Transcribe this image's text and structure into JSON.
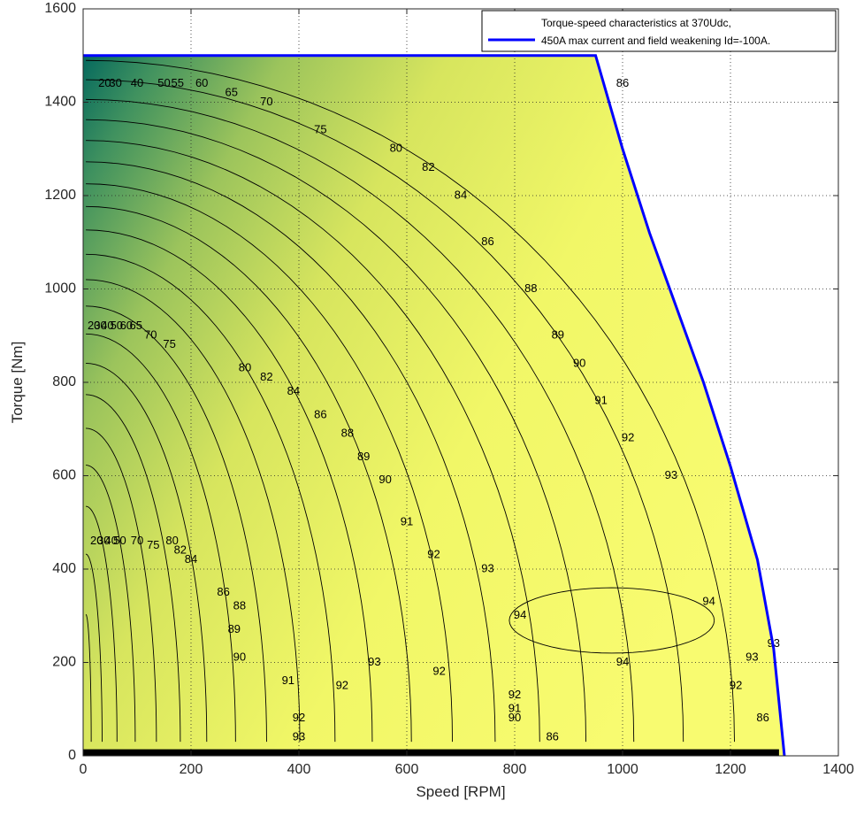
{
  "chart_data": {
    "type": "contour",
    "xlabel": "Speed [RPM]",
    "ylabel": "Torque [Nm]",
    "xlim": [
      0,
      1400
    ],
    "ylim": [
      0,
      1600
    ],
    "xticks": [
      0,
      200,
      400,
      600,
      800,
      1000,
      1200,
      1400
    ],
    "yticks": [
      0,
      200,
      400,
      600,
      800,
      1000,
      1200,
      1400,
      1600
    ],
    "grid": true,
    "legend": {
      "placement": "top-right",
      "entries": [
        {
          "line1": "Torque-speed characteristics at 370Udc,",
          "line2": "450A max current and field weakening Id=-100A.",
          "color": "#0000ff"
        }
      ]
    },
    "envelope": {
      "name": "Torque-speed characteristics at 370Udc, 450A max current and field weakening Id=-100A.",
      "color": "#0000ff",
      "x": [
        0,
        950,
        1000,
        1050,
        1100,
        1150,
        1200,
        1250,
        1280,
        1300
      ],
      "y": [
        1500,
        1500,
        1300,
        1120,
        960,
        800,
        620,
        420,
        230,
        0
      ]
    },
    "contour_levels": [
      20,
      30,
      40,
      50,
      55,
      60,
      65,
      70,
      75,
      80,
      82,
      84,
      86,
      88,
      89,
      90,
      91,
      92,
      93,
      94
    ],
    "efficiency_labels": [
      {
        "text": "20",
        "x": 40,
        "y": 1440
      },
      {
        "text": "30",
        "x": 60,
        "y": 1440
      },
      {
        "text": "40",
        "x": 100,
        "y": 1440
      },
      {
        "text": "50",
        "x": 150,
        "y": 1440
      },
      {
        "text": "55",
        "x": 175,
        "y": 1440
      },
      {
        "text": "60",
        "x": 220,
        "y": 1440
      },
      {
        "text": "65",
        "x": 275,
        "y": 1420
      },
      {
        "text": "70",
        "x": 340,
        "y": 1400
      },
      {
        "text": "75",
        "x": 440,
        "y": 1340
      },
      {
        "text": "80",
        "x": 580,
        "y": 1300
      },
      {
        "text": "82",
        "x": 640,
        "y": 1260
      },
      {
        "text": "84",
        "x": 700,
        "y": 1200
      },
      {
        "text": "86",
        "x": 750,
        "y": 1100
      },
      {
        "text": "86",
        "x": 1000,
        "y": 1440
      },
      {
        "text": "88",
        "x": 830,
        "y": 1000
      },
      {
        "text": "89",
        "x": 880,
        "y": 900
      },
      {
        "text": "90",
        "x": 920,
        "y": 840
      },
      {
        "text": "91",
        "x": 960,
        "y": 760
      },
      {
        "text": "92",
        "x": 1010,
        "y": 680
      },
      {
        "text": "93",
        "x": 1090,
        "y": 600
      },
      {
        "text": "94",
        "x": 1160,
        "y": 330
      },
      {
        "text": "94",
        "x": 1000,
        "y": 200
      },
      {
        "text": "94",
        "x": 810,
        "y": 300
      },
      {
        "text": "93",
        "x": 1240,
        "y": 210
      },
      {
        "text": "92",
        "x": 1210,
        "y": 150
      },
      {
        "text": "86",
        "x": 1260,
        "y": 80
      },
      {
        "text": "20",
        "x": 20,
        "y": 920
      },
      {
        "text": "30",
        "x": 32,
        "y": 920
      },
      {
        "text": "40",
        "x": 45,
        "y": 920
      },
      {
        "text": "50",
        "x": 62,
        "y": 920
      },
      {
        "text": "60",
        "x": 80,
        "y": 920
      },
      {
        "text": "65",
        "x": 98,
        "y": 920
      },
      {
        "text": "70",
        "x": 125,
        "y": 900
      },
      {
        "text": "75",
        "x": 160,
        "y": 880
      },
      {
        "text": "80",
        "x": 300,
        "y": 830
      },
      {
        "text": "82",
        "x": 340,
        "y": 810
      },
      {
        "text": "84",
        "x": 390,
        "y": 780
      },
      {
        "text": "86",
        "x": 440,
        "y": 730
      },
      {
        "text": "88",
        "x": 490,
        "y": 690
      },
      {
        "text": "89",
        "x": 520,
        "y": 640
      },
      {
        "text": "90",
        "x": 560,
        "y": 590
      },
      {
        "text": "91",
        "x": 600,
        "y": 500
      },
      {
        "text": "92",
        "x": 650,
        "y": 430
      },
      {
        "text": "93",
        "x": 750,
        "y": 400
      },
      {
        "text": "92",
        "x": 660,
        "y": 180
      },
      {
        "text": "93",
        "x": 540,
        "y": 200
      },
      {
        "text": "92",
        "x": 480,
        "y": 150
      },
      {
        "text": "91",
        "x": 380,
        "y": 160
      },
      {
        "text": "90",
        "x": 290,
        "y": 210
      },
      {
        "text": "89",
        "x": 280,
        "y": 270
      },
      {
        "text": "88",
        "x": 290,
        "y": 320
      },
      {
        "text": "86",
        "x": 260,
        "y": 350
      },
      {
        "text": "84",
        "x": 200,
        "y": 420
      },
      {
        "text": "82",
        "x": 180,
        "y": 440
      },
      {
        "text": "80",
        "x": 165,
        "y": 460
      },
      {
        "text": "75",
        "x": 130,
        "y": 450
      },
      {
        "text": "70",
        "x": 100,
        "y": 460
      },
      {
        "text": "20",
        "x": 25,
        "y": 460
      },
      {
        "text": "30",
        "x": 38,
        "y": 460
      },
      {
        "text": "40",
        "x": 52,
        "y": 460
      },
      {
        "text": "50",
        "x": 68,
        "y": 460
      },
      {
        "text": "92",
        "x": 400,
        "y": 80
      },
      {
        "text": "93",
        "x": 400,
        "y": 40
      },
      {
        "text": "91",
        "x": 800,
        "y": 100
      },
      {
        "text": "92",
        "x": 800,
        "y": 130
      },
      {
        "text": "90",
        "x": 800,
        "y": 80
      },
      {
        "text": "86",
        "x": 870,
        "y": 40
      },
      {
        "text": "93",
        "x": 1280,
        "y": 240
      }
    ]
  }
}
